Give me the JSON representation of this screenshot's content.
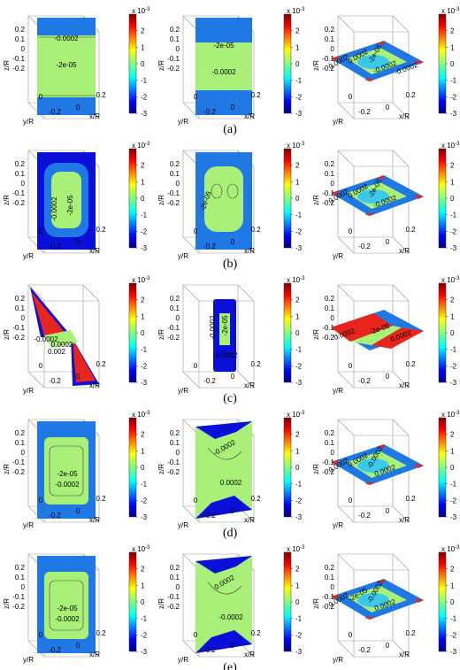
{
  "row_labels": [
    "(a)",
    "(b)",
    "(c)",
    "(d)",
    "(e)"
  ],
  "colorbar": {
    "exponent_label": "x 10",
    "exponent_power": "-3",
    "ticks": [
      "2",
      "1",
      "0",
      "-1",
      "-2",
      "-3"
    ],
    "range": [
      -3,
      3
    ],
    "colormap": "jet"
  },
  "axes": {
    "zlabel": "z/R",
    "ylabel": "y/R",
    "xlabel": "x/R",
    "z_ticks": [
      "0.2",
      "0.1",
      "0",
      "-0.1",
      "-0.2"
    ],
    "y_ticks": [
      "0.2",
      "0",
      "-0.2"
    ],
    "x_ticks": [
      "0",
      "0.2"
    ]
  },
  "chart_data": [
    {
      "type": "heatmap",
      "row": "(a)",
      "plane": "yz",
      "contour_labels": [
        "-0.0002",
        "-2e-05"
      ]
    },
    {
      "type": "heatmap",
      "row": "(a)",
      "plane": "xz",
      "contour_labels": [
        "-2e-05",
        "-0.0002"
      ]
    },
    {
      "type": "heatmap",
      "row": "(a)",
      "plane": "xy",
      "contour_labels": [
        "0.0002",
        "0.0002",
        "-2e-05",
        "-0.0002",
        "-0.0002"
      ]
    },
    {
      "type": "heatmap",
      "row": "(b)",
      "plane": "yz",
      "contour_labels": [
        "-0.0002",
        "-2e-05"
      ]
    },
    {
      "type": "heatmap",
      "row": "(b)",
      "plane": "xz",
      "contour_labels": [
        "-2e-05"
      ]
    },
    {
      "type": "heatmap",
      "row": "(b)",
      "plane": "xy",
      "contour_labels": [
        "0.0002",
        "0.0002",
        "-2e-05",
        "-0.0002"
      ]
    },
    {
      "type": "heatmap",
      "row": "(c)",
      "plane": "yz",
      "contour_labels": [
        "-0.0002",
        "0.0002",
        "0.002"
      ]
    },
    {
      "type": "heatmap",
      "row": "(c)",
      "plane": "xz",
      "contour_labels": [
        "-0.0002",
        "-2e-05",
        "-0.0002"
      ]
    },
    {
      "type": "heatmap",
      "row": "(c)",
      "plane": "xy",
      "contour_labels": [
        "0.0002",
        "-2e-05",
        "0.0002"
      ]
    },
    {
      "type": "heatmap",
      "row": "(d)",
      "plane": "yz",
      "contour_labels": [
        "-2e-05",
        "-0.0002"
      ]
    },
    {
      "type": "heatmap",
      "row": "(d)",
      "plane": "xz",
      "contour_labels": [
        "-0.0002",
        "0.0002"
      ]
    },
    {
      "type": "heatmap",
      "row": "(d)",
      "plane": "xy",
      "contour_labels": [
        "0.0002",
        "0.0002",
        "-0.0002",
        "0.0002"
      ]
    },
    {
      "type": "heatmap",
      "row": "(e)",
      "plane": "yz",
      "contour_labels": [
        "-2e-05",
        "-0.0002"
      ]
    },
    {
      "type": "heatmap",
      "row": "(e)",
      "plane": "xz",
      "contour_labels": [
        "0.0002",
        "-0.0002"
      ]
    },
    {
      "type": "heatmap",
      "row": "(e)",
      "plane": "xy",
      "contour_labels": [
        "0.0002",
        "-2e-05",
        "-0.0002",
        "0.0002"
      ]
    }
  ]
}
